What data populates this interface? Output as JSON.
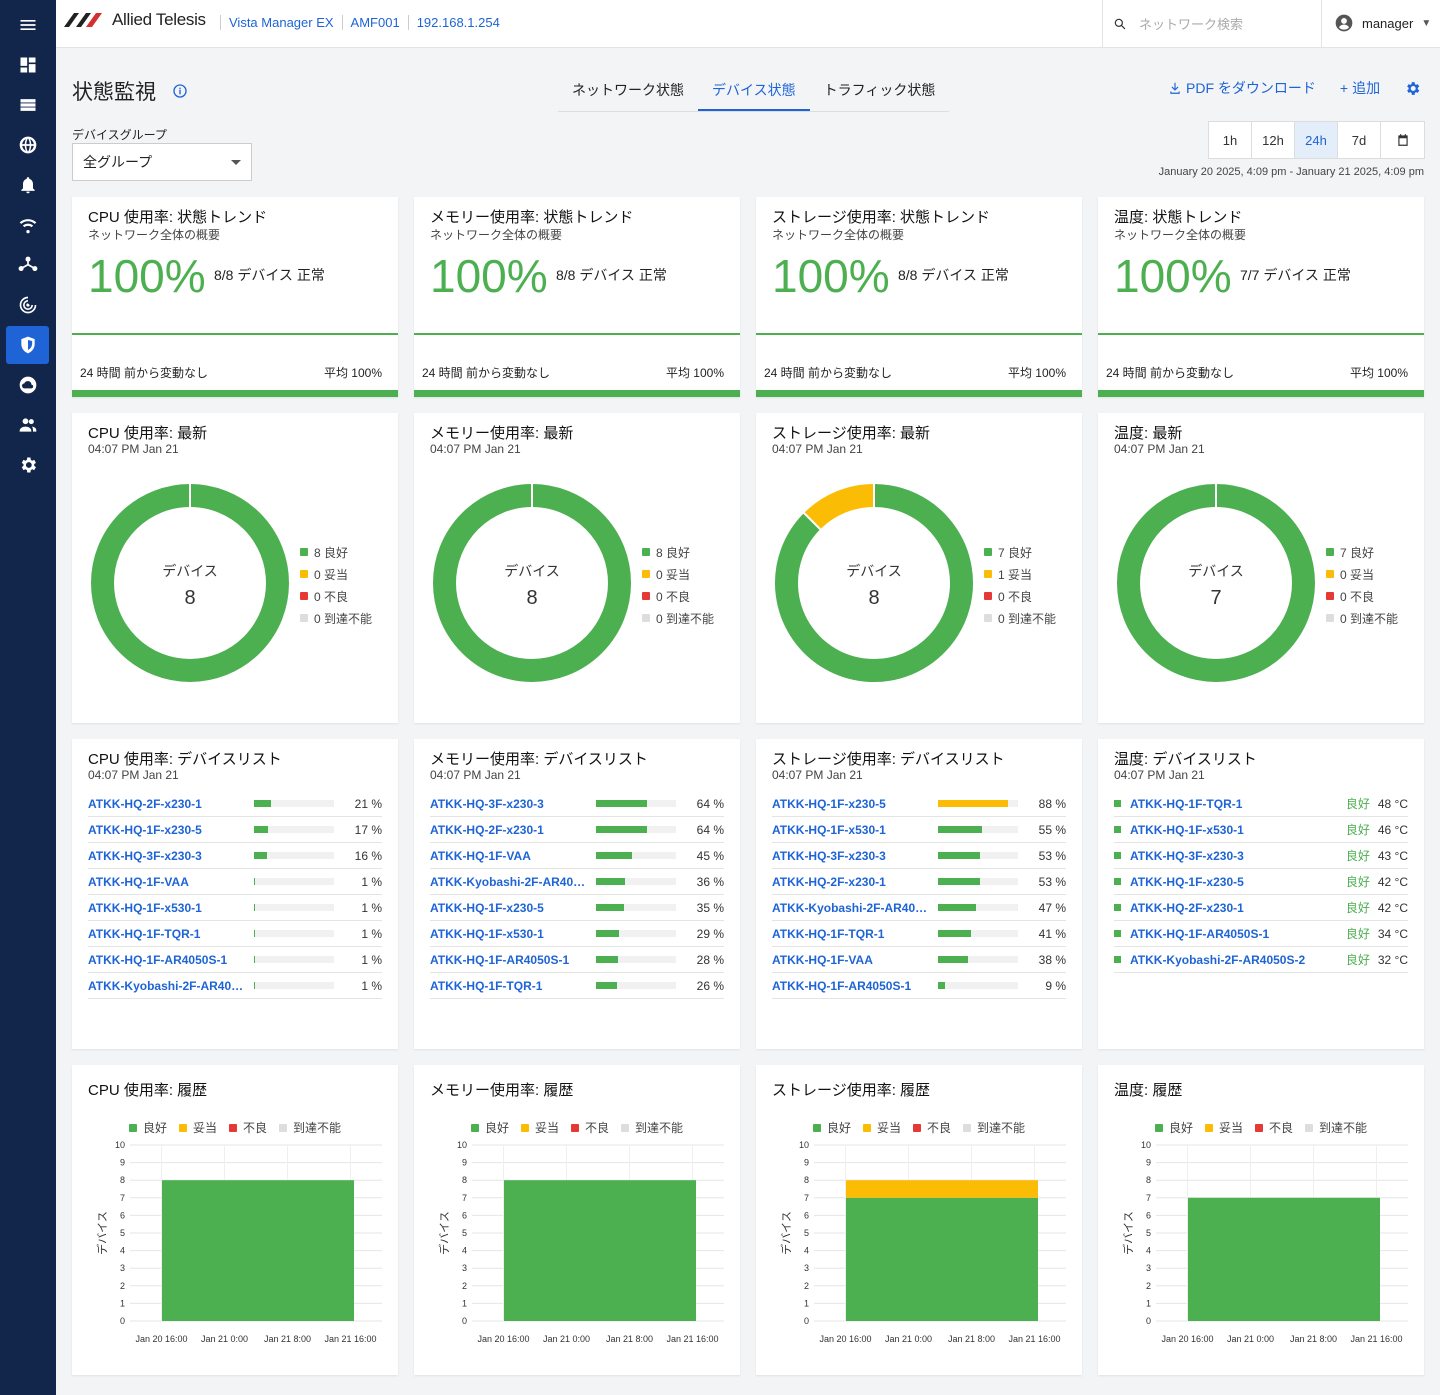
{
  "app": {
    "brand": "Allied Telesis",
    "breadcrumbs": [
      "Vista Manager EX",
      "AMF001",
      "192.168.1.254"
    ],
    "search_placeholder": "ネットワーク検索",
    "user": "manager"
  },
  "page": {
    "title": "状態監視",
    "tabs": [
      "ネットワーク状態",
      "デバイス状態",
      "トラフィック状態"
    ],
    "active_tab": 1,
    "download": "PDF をダウンロード",
    "add": "追加"
  },
  "filter": {
    "group_label": "デバイスグループ",
    "group_value": "全グループ",
    "ranges": [
      "1h",
      "12h",
      "24h",
      "7d"
    ],
    "active_range": "24h",
    "range_text": "January 20 2025, 4:09 pm - January 21 2025, 4:09 pm"
  },
  "colors": {
    "good": "#4caf50",
    "fair": "#fbbc05",
    "bad": "#e53935",
    "unreach": "#dddddd",
    "accent": "#1e64d6"
  },
  "trend": [
    {
      "title": "CPU 使用率: 状態トレンド",
      "sub": "ネットワーク全体の概要",
      "pct": "100%",
      "devs": "8/8 デバイス 正常",
      "change": "24 時間 前から変動なし",
      "avg": "平均 100%"
    },
    {
      "title": "メモリー使用率: 状態トレンド",
      "sub": "ネットワーク全体の概要",
      "pct": "100%",
      "devs": "8/8 デバイス 正常",
      "change": "24 時間 前から変動なし",
      "avg": "平均 100%"
    },
    {
      "title": "ストレージ使用率: 状態トレンド",
      "sub": "ネットワーク全体の概要",
      "pct": "100%",
      "devs": "8/8 デバイス 正常",
      "change": "24 時間 前から変動なし",
      "avg": "平均 100%"
    },
    {
      "title": "温度: 状態トレンド",
      "sub": "ネットワーク全体の概要",
      "pct": "100%",
      "devs": "7/7 デバイス 正常",
      "change": "24 時間 前から変動なし",
      "avg": "平均 100%"
    }
  ],
  "latest": [
    {
      "title": "CPU 使用率: 最新",
      "time": "04:07 PM Jan 21",
      "center": "デバイス",
      "total": "8",
      "counts": [
        8,
        0,
        0,
        0
      ],
      "legend": [
        "8 良好",
        "0 妥当",
        "0 不良",
        "0 到達不能"
      ]
    },
    {
      "title": "メモリー使用率: 最新",
      "time": "04:07 PM Jan 21",
      "center": "デバイス",
      "total": "8",
      "counts": [
        8,
        0,
        0,
        0
      ],
      "legend": [
        "8 良好",
        "0 妥当",
        "0 不良",
        "0 到達不能"
      ]
    },
    {
      "title": "ストレージ使用率: 最新",
      "time": "04:07 PM Jan 21",
      "center": "デバイス",
      "total": "8",
      "counts": [
        7,
        1,
        0,
        0
      ],
      "legend": [
        "7 良好",
        "1 妥当",
        "0 不良",
        "0 到達不能"
      ]
    },
    {
      "title": "温度: 最新",
      "time": "04:07 PM Jan 21",
      "center": "デバイス",
      "total": "7",
      "counts": [
        7,
        0,
        0,
        0
      ],
      "legend": [
        "7 良好",
        "0 妥当",
        "0 不良",
        "0 到達不能"
      ]
    }
  ],
  "lists": [
    {
      "title": "CPU 使用率: デバイスリスト",
      "time": "04:07 PM Jan 21",
      "rows": [
        {
          "name": "ATKK-HQ-2F-x230-1",
          "pct": 21,
          "label": "21 %",
          "status": "good"
        },
        {
          "name": "ATKK-HQ-1F-x230-5",
          "pct": 17,
          "label": "17 %",
          "status": "good"
        },
        {
          "name": "ATKK-HQ-3F-x230-3",
          "pct": 16,
          "label": "16 %",
          "status": "good"
        },
        {
          "name": "ATKK-HQ-1F-VAA",
          "pct": 1,
          "label": "1 %",
          "status": "good"
        },
        {
          "name": "ATKK-HQ-1F-x530-1",
          "pct": 1,
          "label": "1 %",
          "status": "good"
        },
        {
          "name": "ATKK-HQ-1F-TQR-1",
          "pct": 1,
          "label": "1 %",
          "status": "good"
        },
        {
          "name": "ATKK-HQ-1F-AR4050S-1",
          "pct": 1,
          "label": "1 %",
          "status": "good"
        },
        {
          "name": "ATKK-Kyobashi-2F-AR405…",
          "pct": 1,
          "label": "1 %",
          "status": "good"
        }
      ]
    },
    {
      "title": "メモリー使用率: デバイスリスト",
      "time": "04:07 PM Jan 21",
      "rows": [
        {
          "name": "ATKK-HQ-3F-x230-3",
          "pct": 64,
          "label": "64 %",
          "status": "good"
        },
        {
          "name": "ATKK-HQ-2F-x230-1",
          "pct": 64,
          "label": "64 %",
          "status": "good"
        },
        {
          "name": "ATKK-HQ-1F-VAA",
          "pct": 45,
          "label": "45 %",
          "status": "good"
        },
        {
          "name": "ATKK-Kyobashi-2F-AR405…",
          "pct": 36,
          "label": "36 %",
          "status": "good"
        },
        {
          "name": "ATKK-HQ-1F-x230-5",
          "pct": 35,
          "label": "35 %",
          "status": "good"
        },
        {
          "name": "ATKK-HQ-1F-x530-1",
          "pct": 29,
          "label": "29 %",
          "status": "good"
        },
        {
          "name": "ATKK-HQ-1F-AR4050S-1",
          "pct": 28,
          "label": "28 %",
          "status": "good"
        },
        {
          "name": "ATKK-HQ-1F-TQR-1",
          "pct": 26,
          "label": "26 %",
          "status": "good"
        }
      ]
    },
    {
      "title": "ストレージ使用率: デバイスリスト",
      "time": "04:07 PM Jan 21",
      "rows": [
        {
          "name": "ATKK-HQ-1F-x230-5",
          "pct": 88,
          "label": "88 %",
          "status": "fair"
        },
        {
          "name": "ATKK-HQ-1F-x530-1",
          "pct": 55,
          "label": "55 %",
          "status": "good"
        },
        {
          "name": "ATKK-HQ-3F-x230-3",
          "pct": 53,
          "label": "53 %",
          "status": "good"
        },
        {
          "name": "ATKK-HQ-2F-x230-1",
          "pct": 53,
          "label": "53 %",
          "status": "good"
        },
        {
          "name": "ATKK-Kyobashi-2F-AR405…",
          "pct": 47,
          "label": "47 %",
          "status": "good"
        },
        {
          "name": "ATKK-HQ-1F-TQR-1",
          "pct": 41,
          "label": "41 %",
          "status": "good"
        },
        {
          "name": "ATKK-HQ-1F-VAA",
          "pct": 38,
          "label": "38 %",
          "status": "good"
        },
        {
          "name": "ATKK-HQ-1F-AR4050S-1",
          "pct": 9,
          "label": "9 %",
          "status": "good"
        }
      ]
    }
  ],
  "temp_list": {
    "title": "温度: デバイスリスト",
    "time": "04:07 PM Jan 21",
    "rows": [
      {
        "name": "ATKK-HQ-1F-TQR-1",
        "status": "良好",
        "value": "48 °C"
      },
      {
        "name": "ATKK-HQ-1F-x530-1",
        "status": "良好",
        "value": "46 °C"
      },
      {
        "name": "ATKK-HQ-3F-x230-3",
        "status": "良好",
        "value": "43 °C"
      },
      {
        "name": "ATKK-HQ-1F-x230-5",
        "status": "良好",
        "value": "42 °C"
      },
      {
        "name": "ATKK-HQ-2F-x230-1",
        "status": "良好",
        "value": "42 °C"
      },
      {
        "name": "ATKK-HQ-1F-AR4050S-1",
        "status": "良好",
        "value": "34 °C"
      },
      {
        "name": "ATKK-Kyobashi-2F-AR4050S-2",
        "status": "良好",
        "value": "32 °C"
      }
    ]
  },
  "history": [
    {
      "title": "CPU 使用率: 履歴"
    },
    {
      "title": "メモリー使用率: 履歴"
    },
    {
      "title": "ストレージ使用率: 履歴"
    },
    {
      "title": "温度: 履歴"
    }
  ],
  "history_legend": [
    "良好",
    "妥当",
    "不良",
    "到達不能"
  ],
  "chart_data": [
    {
      "type": "bar",
      "title": "CPU 使用率: 履歴",
      "ylabel": "デバイス",
      "ylim": [
        0,
        10
      ],
      "yticks": [
        0,
        1,
        2,
        3,
        4,
        5,
        6,
        7,
        8,
        9,
        10
      ],
      "xticks": [
        "Jan 20 16:00",
        "Jan 21 0:00",
        "Jan 21 8:00",
        "Jan 21 16:00"
      ],
      "x": [
        "Jan 20 16:00 - Jan 21 16:00"
      ],
      "series": [
        {
          "name": "良好",
          "values": [
            8
          ]
        },
        {
          "name": "妥当",
          "values": [
            0
          ]
        },
        {
          "name": "不良",
          "values": [
            0
          ]
        },
        {
          "name": "到達不能",
          "values": [
            0
          ]
        }
      ]
    },
    {
      "type": "bar",
      "title": "メモリー使用率: 履歴",
      "ylabel": "デバイス",
      "ylim": [
        0,
        10
      ],
      "yticks": [
        0,
        1,
        2,
        3,
        4,
        5,
        6,
        7,
        8,
        9,
        10
      ],
      "xticks": [
        "Jan 20 16:00",
        "Jan 21 0:00",
        "Jan 21 8:00",
        "Jan 21 16:00"
      ],
      "x": [
        "Jan 20 16:00 - Jan 21 16:00"
      ],
      "series": [
        {
          "name": "良好",
          "values": [
            8
          ]
        },
        {
          "name": "妥当",
          "values": [
            0
          ]
        },
        {
          "name": "不良",
          "values": [
            0
          ]
        },
        {
          "name": "到達不能",
          "values": [
            0
          ]
        }
      ]
    },
    {
      "type": "bar",
      "title": "ストレージ使用率: 履歴",
      "ylabel": "デバイス",
      "ylim": [
        0,
        10
      ],
      "yticks": [
        0,
        1,
        2,
        3,
        4,
        5,
        6,
        7,
        8,
        9,
        10
      ],
      "xticks": [
        "Jan 20 16:00",
        "Jan 21 0:00",
        "Jan 21 8:00",
        "Jan 21 16:00"
      ],
      "x": [
        "Jan 20 16:00 - Jan 21 16:00"
      ],
      "series": [
        {
          "name": "良好",
          "values": [
            7
          ]
        },
        {
          "name": "妥当",
          "values": [
            1
          ]
        },
        {
          "name": "不良",
          "values": [
            0
          ]
        },
        {
          "name": "到達不能",
          "values": [
            0
          ]
        }
      ]
    },
    {
      "type": "bar",
      "title": "温度: 履歴",
      "ylabel": "デバイス",
      "ylim": [
        0,
        10
      ],
      "yticks": [
        0,
        1,
        2,
        3,
        4,
        5,
        6,
        7,
        8,
        9,
        10
      ],
      "xticks": [
        "Jan 20 16:00",
        "Jan 21 0:00",
        "Jan 21 8:00",
        "Jan 21 16:00"
      ],
      "x": [
        "Jan 20 16:00 - Jan 21 16:00"
      ],
      "series": [
        {
          "name": "良好",
          "values": [
            7
          ]
        },
        {
          "name": "妥当",
          "values": [
            0
          ]
        },
        {
          "name": "不良",
          "values": [
            0
          ]
        },
        {
          "name": "到達不能",
          "values": [
            0
          ]
        }
      ]
    }
  ]
}
